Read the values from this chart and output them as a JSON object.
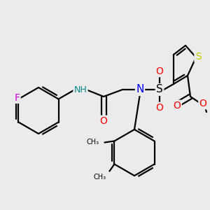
{
  "bg_color": "#ebebeb",
  "bond_lw": 1.6,
  "font_size": 9,
  "colors": {
    "C": "#000000",
    "N": "#0000ff",
    "NH": "#008888",
    "O": "#ff0000",
    "S": "#cccc00",
    "S_sulfonyl": "#000000",
    "F": "#cc00cc"
  },
  "figsize": [
    3.0,
    3.0
  ],
  "dpi": 100
}
